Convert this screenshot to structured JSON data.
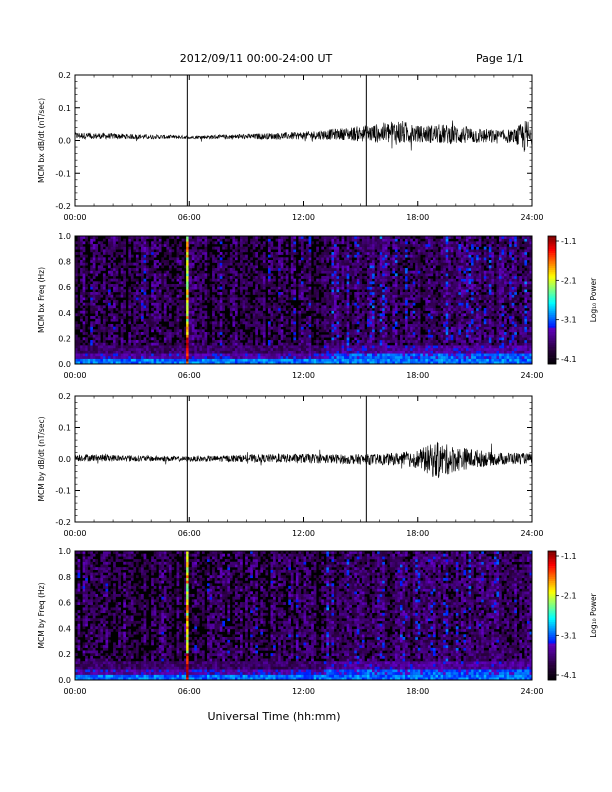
{
  "header": {
    "title": "2012/09/11  00:00-24:00 UT",
    "page": "Page 1/1"
  },
  "xlabel": "Universal Time (hh:mm)",
  "colors": {
    "trace": "#000000",
    "background": "#ffffff"
  },
  "colorbar": {
    "label": "Log₁₀ Power",
    "ticks": [
      "-1.1",
      "-2.1",
      "-3.1",
      "-4.1"
    ]
  },
  "chart_data": [
    {
      "type": "line",
      "ylabel": "MCM bx dB/dt (nT/sec)",
      "xlim": [
        0,
        24
      ],
      "ylim": [
        -0.2,
        0.2
      ],
      "xticks": [
        "00:00",
        "06:00",
        "12:00",
        "18:00",
        "24:00"
      ],
      "yticks": [
        "0.2",
        "0.1",
        "0.0",
        "-0.1",
        "-0.2"
      ],
      "markers": [
        5.9,
        15.3
      ],
      "x": [
        0,
        3,
        6,
        9,
        12,
        14,
        16,
        17,
        18,
        19,
        20,
        21,
        22,
        23,
        23.8,
        24
      ],
      "series": [
        {
          "values": [
            0.015,
            0.012,
            0.01,
            0.012,
            0.015,
            0.02,
            0.022,
            0.025,
            0.02,
            0.02,
            0.018,
            0.015,
            0.012,
            0.012,
            0.01,
            0.01
          ],
          "envelope": [
            0.01,
            0.008,
            0.005,
            0.008,
            0.012,
            0.018,
            0.03,
            0.04,
            0.025,
            0.03,
            0.03,
            0.025,
            0.022,
            0.02,
            0.06,
            0.02
          ]
        }
      ]
    },
    {
      "type": "heatmap",
      "ylabel": "MCM bx Freq (Hz)",
      "xlim": [
        0,
        24
      ],
      "ylim": [
        0,
        1.0
      ],
      "xticks": [
        "00:00",
        "06:00",
        "12:00",
        "18:00",
        "24:00"
      ],
      "yticks": [
        "1.0",
        "0.8",
        "0.6",
        "0.4",
        "0.2",
        "0.0"
      ],
      "zlim": [
        -4.1,
        -1.1
      ],
      "bright_band_time": 5.9
    },
    {
      "type": "line",
      "ylabel": "MCM by dB/dt (nT/sec)",
      "xlim": [
        0,
        24
      ],
      "ylim": [
        -0.2,
        0.2
      ],
      "xticks": [
        "00:00",
        "06:00",
        "12:00",
        "18:00",
        "24:00"
      ],
      "yticks": [
        "0.2",
        "0.1",
        "0.0",
        "-0.1",
        "-0.2"
      ],
      "markers": [
        5.9,
        15.3
      ],
      "x": [
        0,
        3,
        6,
        9,
        12,
        14,
        16,
        17,
        18,
        19,
        20,
        21,
        22,
        23,
        24
      ],
      "series": [
        {
          "values": [
            0.005,
            0.002,
            0.0,
            0.002,
            0.002,
            0.0,
            -0.002,
            0.0,
            0.0,
            -0.005,
            0.0,
            0.002,
            0.0,
            0.002,
            0.002
          ],
          "envelope": [
            0.012,
            0.01,
            0.008,
            0.012,
            0.015,
            0.015,
            0.018,
            0.02,
            0.03,
            0.06,
            0.04,
            0.03,
            0.02,
            0.02,
            0.015
          ]
        }
      ]
    },
    {
      "type": "heatmap",
      "ylabel": "MCM by Freq (Hz)",
      "xlim": [
        0,
        24
      ],
      "ylim": [
        0,
        1.0
      ],
      "xticks": [
        "00:00",
        "06:00",
        "12:00",
        "18:00",
        "24:00"
      ],
      "yticks": [
        "1.0",
        "0.8",
        "0.6",
        "0.4",
        "0.2",
        "0.0"
      ],
      "zlim": [
        -4.1,
        -1.1
      ],
      "bright_band_time": 5.9
    }
  ]
}
